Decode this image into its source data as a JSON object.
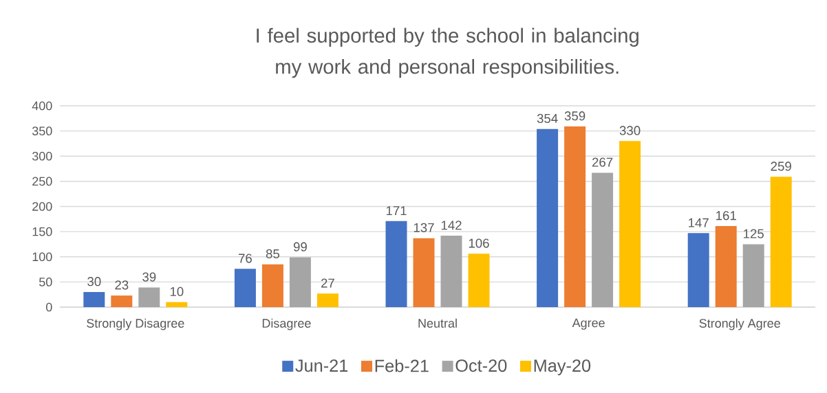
{
  "chart_data": {
    "type": "bar",
    "title": "I feel supported by the school in balancing my work and personal responsibilities.",
    "categories": [
      "Strongly Disagree",
      "Disagree",
      "Neutral",
      "Agree",
      "Strongly Agree"
    ],
    "series": [
      {
        "name": "Jun-21",
        "color": "#4472c4",
        "values": [
          30,
          76,
          171,
          354,
          147
        ]
      },
      {
        "name": "Feb-21",
        "color": "#ed7d31",
        "values": [
          23,
          85,
          137,
          359,
          161
        ]
      },
      {
        "name": "Oct-20",
        "color": "#a5a5a5",
        "values": [
          39,
          99,
          142,
          267,
          125
        ]
      },
      {
        "name": "May-20",
        "color": "#ffc000",
        "values": [
          10,
          27,
          106,
          330,
          259
        ]
      }
    ],
    "ylim": [
      0,
      400
    ],
    "yticks": [
      0,
      50,
      100,
      150,
      200,
      250,
      300,
      350,
      400
    ],
    "grid": "y",
    "legend": "bottom",
    "data_labels": true
  }
}
